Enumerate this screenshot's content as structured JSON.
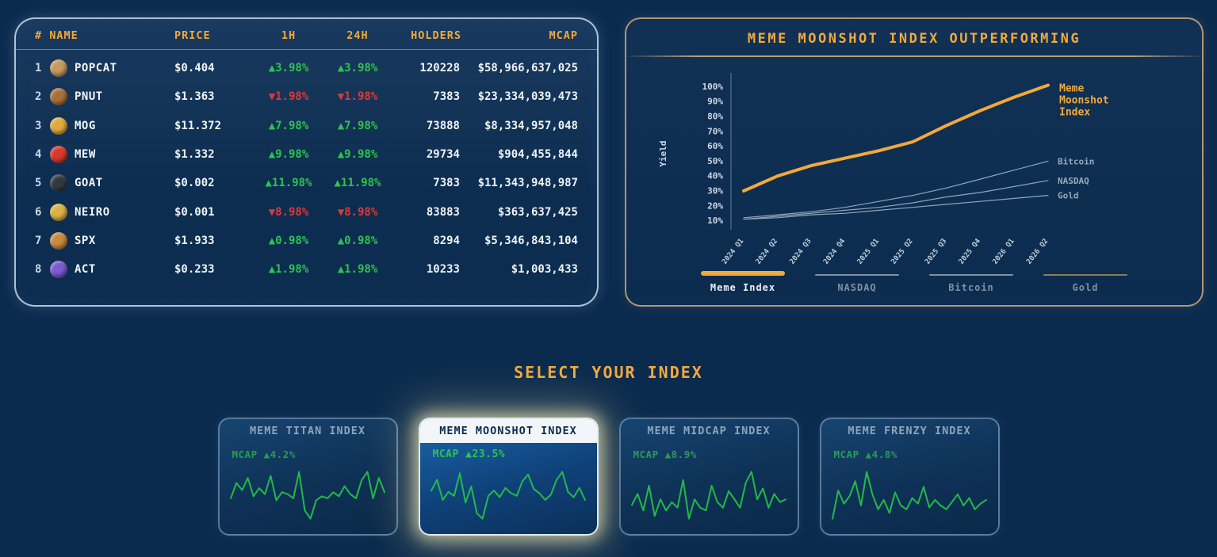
{
  "colors": {
    "background": "#0b2b4e",
    "accent_orange": "#f2a93b",
    "positive_green": "#2fc24f",
    "negative_red": "#dc3a3a",
    "spark_green": "#25c347",
    "inactive_gray": "#7e90a4"
  },
  "table": {
    "headers": {
      "rank_name": "# NAME",
      "price": "PRICE",
      "h1": "1H",
      "h24": "24H",
      "holders": "HOLDERS",
      "mcap": "MCAP"
    },
    "rows": [
      {
        "rank": "1",
        "name": "POPCAT",
        "icon": "popcat-coin-icon",
        "icon_color": "#c79a5e",
        "price": "$0.404",
        "change_1h": "▲3.98%",
        "change_24h": "▲3.98%",
        "direction": "up",
        "holders": "120228",
        "mcap": "$58,966,637,025"
      },
      {
        "rank": "2",
        "name": "PNUT",
        "icon": "pnut-coin-icon",
        "icon_color": "#a8713c",
        "price": "$1.363",
        "change_1h": "▼1.98%",
        "change_24h": "▼1.98%",
        "direction": "down",
        "holders": "7383",
        "mcap": "$23,334,039,473"
      },
      {
        "rank": "3",
        "name": "MOG",
        "icon": "mog-coin-icon",
        "icon_color": "#e2a93c",
        "price": "$11.372",
        "change_1h": "▲7.98%",
        "change_24h": "▲7.98%",
        "direction": "up",
        "holders": "73888",
        "mcap": "$8,334,957,048"
      },
      {
        "rank": "4",
        "name": "MEW",
        "icon": "mew-coin-icon",
        "icon_color": "#d8392c",
        "price": "$1.332",
        "change_1h": "▲9.98%",
        "change_24h": "▲9.98%",
        "direction": "up",
        "holders": "29734",
        "mcap": "$904,455,844"
      },
      {
        "rank": "5",
        "name": "GOAT",
        "icon": "goat-coin-icon",
        "icon_color": "#33393f",
        "price": "$0.002",
        "change_1h": "▲11.98%",
        "change_24h": "▲11.98%",
        "direction": "up",
        "holders": "7383",
        "mcap": "$11,343,948,987"
      },
      {
        "rank": "6",
        "name": "NEIRO",
        "icon": "neiro-coin-icon",
        "icon_color": "#ddb143",
        "price": "$0.001",
        "change_1h": "▼8.98%",
        "change_24h": "▼8.98%",
        "direction": "down",
        "holders": "83883",
        "mcap": "$363,637,425"
      },
      {
        "rank": "7",
        "name": "SPX",
        "icon": "spx-coin-icon",
        "icon_color": "#c98a3e",
        "price": "$1.933",
        "change_1h": "▲0.98%",
        "change_24h": "▲0.98%",
        "direction": "up",
        "holders": "8294",
        "mcap": "$5,346,843,104"
      },
      {
        "rank": "8",
        "name": "ACT",
        "icon": "act-coin-icon",
        "icon_color": "#7b5ad2",
        "price": "$0.233",
        "change_1h": "▲1.98%",
        "change_24h": "▲1.98%",
        "direction": "up",
        "holders": "10233",
        "mcap": "$1,003,433"
      }
    ]
  },
  "chart_data": {
    "type": "line",
    "title": "MEME MOONSHOT INDEX OUTPERFORMING",
    "ylabel": "Yield",
    "grid": false,
    "ylim": [
      0,
      105
    ],
    "x": [
      "2024 Q1",
      "2024 Q2",
      "2024 Q3",
      "2024 Q4",
      "2025 Q1",
      "2025 Q2",
      "2025 Q3",
      "2025 Q4",
      "2026 Q1",
      "2026 Q2"
    ],
    "yticks": [
      "10%",
      "20%",
      "30%",
      "40%",
      "50%",
      "60%",
      "70%",
      "80%",
      "90%",
      "100%"
    ],
    "series": [
      {
        "name": "Meme Moonshot Index",
        "label_lines": [
          "Meme",
          "Moonshot",
          "Index"
        ],
        "color": "#f2a93b",
        "emphasis": true,
        "values": [
          30,
          40,
          47,
          52,
          57,
          63,
          74,
          84,
          93,
          101
        ]
      },
      {
        "name": "Bitcoin",
        "color": "#93a5b8",
        "emphasis": false,
        "values": [
          12,
          14,
          16,
          19,
          23,
          27,
          32,
          38,
          44,
          50
        ]
      },
      {
        "name": "NASDAQ",
        "color": "#93a5b8",
        "emphasis": false,
        "values": [
          11,
          13,
          15,
          17,
          19,
          22,
          26,
          29,
          33,
          37
        ]
      },
      {
        "name": "Gold",
        "color": "#93a5b8",
        "emphasis": false,
        "values": [
          11,
          12,
          14,
          15,
          17,
          19,
          21,
          23,
          25,
          27
        ]
      }
    ],
    "legend": [
      {
        "label": "Meme Index",
        "color": "#f2a93b",
        "active": true
      },
      {
        "label": "NASDAQ",
        "color": "#7e90a4",
        "active": false
      },
      {
        "label": "Bitcoin",
        "color": "#7e90a4",
        "active": false
      },
      {
        "label": "Gold",
        "color": "#8d7b57",
        "active": false
      }
    ],
    "legend_position": "bottom"
  },
  "selector": {
    "title": "SELECT YOUR INDEX",
    "cards": [
      {
        "label": "MEME TITAN INDEX",
        "mcap_label": "MCAP",
        "change": "▲4.2%",
        "active": false,
        "spark": [
          40,
          55,
          48,
          60,
          42,
          50,
          44,
          62,
          38,
          46,
          44,
          40,
          66,
          28,
          20,
          38,
          42,
          40,
          46,
          42,
          52,
          44,
          40,
          58,
          66,
          40,
          60,
          46
        ]
      },
      {
        "label": "MEME MOONSHOT INDEX",
        "mcap_label": "MCAP",
        "change": "▲23.5%",
        "active": true,
        "spark": [
          52,
          68,
          38,
          50,
          44,
          78,
          34,
          58,
          18,
          10,
          44,
          52,
          42,
          56,
          48,
          44,
          66,
          76,
          54,
          48,
          38,
          46,
          68,
          80,
          50,
          42,
          56,
          38
        ]
      },
      {
        "label": "MEME MIDCAP INDEX",
        "mcap_label": "MCAP",
        "change": "▲8.9%",
        "active": false,
        "spark": [
          42,
          50,
          38,
          56,
          34,
          46,
          38,
          44,
          40,
          60,
          32,
          46,
          40,
          38,
          56,
          44,
          40,
          52,
          46,
          40,
          58,
          66,
          46,
          54,
          40,
          50,
          44,
          46
        ]
      },
      {
        "label": "MEME FRENZY INDEX",
        "mcap_label": "MCAP",
        "change": "▲4.8%",
        "active": false,
        "spark": [
          28,
          58,
          44,
          52,
          68,
          42,
          78,
          54,
          38,
          48,
          34,
          56,
          42,
          38,
          50,
          44,
          62,
          40,
          48,
          42,
          38,
          46,
          54,
          42,
          50,
          38,
          44,
          48
        ]
      }
    ]
  }
}
